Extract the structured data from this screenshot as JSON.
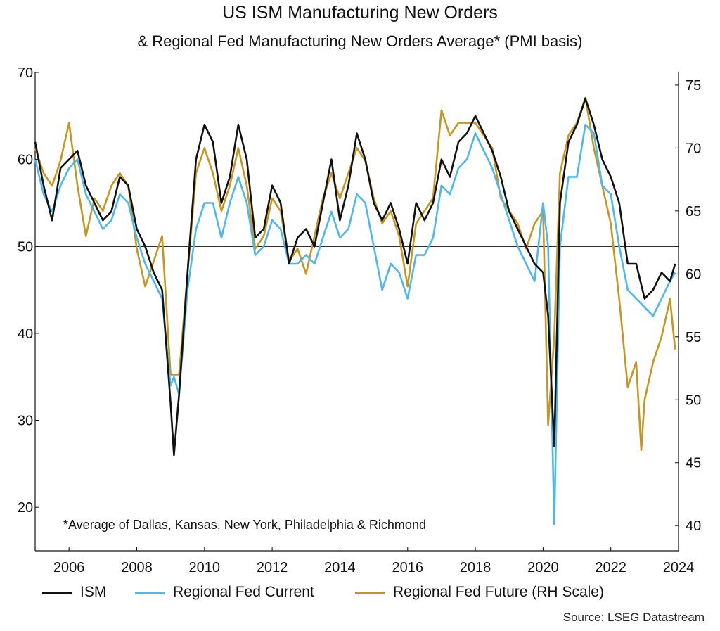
{
  "chart_data": {
    "type": "line",
    "title": "US ISM Manufacturing New Orders",
    "subtitle": "& Regional Fed Manufacturing New Orders Average* (PMI basis)",
    "note": "*Average of Dallas, Kansas, New York, Philadelphia & Richmond",
    "source": "Source: LSEG Datastream",
    "x_ticks": [
      "2006",
      "2008",
      "2010",
      "2012",
      "2014",
      "2016",
      "2018",
      "2020",
      "2022",
      "2024"
    ],
    "x_range": [
      2005.0,
      2024.0
    ],
    "y_left": {
      "range": [
        15,
        70
      ],
      "ticks": [
        "20",
        "30",
        "40",
        "50",
        "60",
        "70"
      ]
    },
    "y_right": {
      "range": [
        38,
        76
      ],
      "ticks": [
        "40",
        "45",
        "50",
        "55",
        "60",
        "65",
        "70",
        "75"
      ]
    },
    "reference_line": 50,
    "legend_placement": "bottom",
    "series": [
      {
        "name": "ISM",
        "axis": "left",
        "color": "#111111",
        "points": [
          [
            2005.0,
            62
          ],
          [
            2005.25,
            57
          ],
          [
            2005.5,
            53
          ],
          [
            2005.75,
            59
          ],
          [
            2006.0,
            60
          ],
          [
            2006.25,
            61
          ],
          [
            2006.5,
            57
          ],
          [
            2006.75,
            55
          ],
          [
            2007.0,
            53
          ],
          [
            2007.25,
            54
          ],
          [
            2007.5,
            58
          ],
          [
            2007.75,
            57
          ],
          [
            2008.0,
            52
          ],
          [
            2008.25,
            50
          ],
          [
            2008.5,
            47
          ],
          [
            2008.75,
            45
          ],
          [
            2009.0,
            32
          ],
          [
            2009.1,
            26
          ],
          [
            2009.25,
            33
          ],
          [
            2009.5,
            47
          ],
          [
            2009.75,
            60
          ],
          [
            2010.0,
            64
          ],
          [
            2010.25,
            62
          ],
          [
            2010.5,
            55
          ],
          [
            2010.75,
            58
          ],
          [
            2011.0,
            64
          ],
          [
            2011.25,
            60
          ],
          [
            2011.5,
            51
          ],
          [
            2011.75,
            52
          ],
          [
            2012.0,
            57
          ],
          [
            2012.25,
            55
          ],
          [
            2012.5,
            48
          ],
          [
            2012.75,
            51
          ],
          [
            2013.0,
            52
          ],
          [
            2013.25,
            50
          ],
          [
            2013.5,
            55
          ],
          [
            2013.75,
            60
          ],
          [
            2014.0,
            53
          ],
          [
            2014.25,
            57
          ],
          [
            2014.5,
            63
          ],
          [
            2014.75,
            60
          ],
          [
            2015.0,
            55
          ],
          [
            2015.25,
            53
          ],
          [
            2015.5,
            55
          ],
          [
            2015.75,
            52
          ],
          [
            2016.0,
            48
          ],
          [
            2016.25,
            55
          ],
          [
            2016.5,
            53
          ],
          [
            2016.75,
            55
          ],
          [
            2017.0,
            60
          ],
          [
            2017.25,
            58
          ],
          [
            2017.5,
            62
          ],
          [
            2017.75,
            63
          ],
          [
            2018.0,
            65
          ],
          [
            2018.25,
            63
          ],
          [
            2018.5,
            61
          ],
          [
            2018.75,
            58
          ],
          [
            2019.0,
            54
          ],
          [
            2019.25,
            52
          ],
          [
            2019.5,
            50
          ],
          [
            2019.75,
            48
          ],
          [
            2020.0,
            47
          ],
          [
            2020.15,
            42
          ],
          [
            2020.33,
            27
          ],
          [
            2020.5,
            55
          ],
          [
            2020.75,
            62
          ],
          [
            2021.0,
            64
          ],
          [
            2021.25,
            67
          ],
          [
            2021.5,
            64
          ],
          [
            2021.75,
            60
          ],
          [
            2022.0,
            58
          ],
          [
            2022.25,
            55
          ],
          [
            2022.5,
            48
          ],
          [
            2022.75,
            48
          ],
          [
            2023.0,
            44
          ],
          [
            2023.25,
            45
          ],
          [
            2023.5,
            47
          ],
          [
            2023.75,
            46
          ],
          [
            2023.9,
            48
          ]
        ]
      },
      {
        "name": "Regional Fed Current",
        "axis": "left",
        "color": "#4db8f0",
        "points": [
          [
            2005.0,
            60
          ],
          [
            2005.25,
            56
          ],
          [
            2005.5,
            54
          ],
          [
            2005.75,
            57
          ],
          [
            2006.0,
            59
          ],
          [
            2006.25,
            60
          ],
          [
            2006.5,
            56
          ],
          [
            2006.75,
            54
          ],
          [
            2007.0,
            52
          ],
          [
            2007.25,
            53
          ],
          [
            2007.5,
            56
          ],
          [
            2007.75,
            55
          ],
          [
            2008.0,
            51
          ],
          [
            2008.25,
            48
          ],
          [
            2008.5,
            46
          ],
          [
            2008.75,
            44
          ],
          [
            2009.0,
            34
          ],
          [
            2009.1,
            35
          ],
          [
            2009.25,
            33
          ],
          [
            2009.5,
            45
          ],
          [
            2009.75,
            52
          ],
          [
            2010.0,
            55
          ],
          [
            2010.25,
            55
          ],
          [
            2010.5,
            51
          ],
          [
            2010.75,
            55
          ],
          [
            2011.0,
            58
          ],
          [
            2011.25,
            55
          ],
          [
            2011.5,
            49
          ],
          [
            2011.75,
            50
          ],
          [
            2012.0,
            53
          ],
          [
            2012.25,
            52
          ],
          [
            2012.5,
            48
          ],
          [
            2012.75,
            48
          ],
          [
            2013.0,
            49
          ],
          [
            2013.25,
            48
          ],
          [
            2013.5,
            51
          ],
          [
            2013.75,
            54
          ],
          [
            2014.0,
            51
          ],
          [
            2014.25,
            52
          ],
          [
            2014.5,
            56
          ],
          [
            2014.75,
            55
          ],
          [
            2015.0,
            50
          ],
          [
            2015.25,
            45
          ],
          [
            2015.5,
            48
          ],
          [
            2015.75,
            47
          ],
          [
            2016.0,
            44
          ],
          [
            2016.25,
            49
          ],
          [
            2016.5,
            49
          ],
          [
            2016.75,
            51
          ],
          [
            2017.0,
            57
          ],
          [
            2017.25,
            56
          ],
          [
            2017.5,
            59
          ],
          [
            2017.75,
            60
          ],
          [
            2018.0,
            63
          ],
          [
            2018.25,
            61
          ],
          [
            2018.5,
            59
          ],
          [
            2018.75,
            56
          ],
          [
            2019.0,
            53
          ],
          [
            2019.25,
            50
          ],
          [
            2019.5,
            48
          ],
          [
            2019.75,
            46
          ],
          [
            2020.0,
            55
          ],
          [
            2020.15,
            50
          ],
          [
            2020.33,
            18
          ],
          [
            2020.5,
            50
          ],
          [
            2020.75,
            58
          ],
          [
            2021.0,
            58
          ],
          [
            2021.25,
            64
          ],
          [
            2021.5,
            63
          ],
          [
            2021.75,
            57
          ],
          [
            2022.0,
            56
          ],
          [
            2022.25,
            50
          ],
          [
            2022.5,
            45
          ],
          [
            2022.75,
            44
          ],
          [
            2023.0,
            43
          ],
          [
            2023.25,
            42
          ],
          [
            2023.5,
            44
          ],
          [
            2023.75,
            46
          ],
          [
            2023.9,
            47
          ]
        ]
      },
      {
        "name": "Regional Fed Future (RH Scale)",
        "axis": "right",
        "color": "#c8961e",
        "points": [
          [
            2005.0,
            70
          ],
          [
            2005.25,
            68
          ],
          [
            2005.5,
            67
          ],
          [
            2005.75,
            69
          ],
          [
            2006.0,
            72
          ],
          [
            2006.25,
            67
          ],
          [
            2006.5,
            63
          ],
          [
            2006.75,
            66
          ],
          [
            2007.0,
            65
          ],
          [
            2007.25,
            67
          ],
          [
            2007.5,
            68
          ],
          [
            2007.75,
            67
          ],
          [
            2008.0,
            62
          ],
          [
            2008.25,
            59
          ],
          [
            2008.5,
            61
          ],
          [
            2008.75,
            63
          ],
          [
            2009.0,
            52
          ],
          [
            2009.1,
            52
          ],
          [
            2009.25,
            52
          ],
          [
            2009.5,
            60
          ],
          [
            2009.75,
            68
          ],
          [
            2010.0,
            70
          ],
          [
            2010.25,
            68
          ],
          [
            2010.5,
            65
          ],
          [
            2010.75,
            67
          ],
          [
            2011.0,
            70
          ],
          [
            2011.25,
            67
          ],
          [
            2011.5,
            62
          ],
          [
            2011.75,
            63
          ],
          [
            2012.0,
            66
          ],
          [
            2012.25,
            65
          ],
          [
            2012.5,
            61
          ],
          [
            2012.75,
            62
          ],
          [
            2013.0,
            60
          ],
          [
            2013.25,
            63
          ],
          [
            2013.5,
            66
          ],
          [
            2013.75,
            68
          ],
          [
            2014.0,
            66
          ],
          [
            2014.25,
            68
          ],
          [
            2014.5,
            70
          ],
          [
            2014.75,
            69
          ],
          [
            2015.0,
            66
          ],
          [
            2015.25,
            64
          ],
          [
            2015.5,
            65
          ],
          [
            2015.75,
            63
          ],
          [
            2016.0,
            59
          ],
          [
            2016.25,
            64
          ],
          [
            2016.5,
            65
          ],
          [
            2016.75,
            66
          ],
          [
            2017.0,
            73
          ],
          [
            2017.25,
            71
          ],
          [
            2017.5,
            72
          ],
          [
            2017.75,
            72
          ],
          [
            2018.0,
            72
          ],
          [
            2018.25,
            71
          ],
          [
            2018.5,
            70
          ],
          [
            2018.75,
            66
          ],
          [
            2019.0,
            65
          ],
          [
            2019.25,
            64
          ],
          [
            2019.5,
            62
          ],
          [
            2019.75,
            64
          ],
          [
            2020.0,
            65
          ],
          [
            2020.15,
            48
          ],
          [
            2020.33,
            55
          ],
          [
            2020.5,
            68
          ],
          [
            2020.75,
            71
          ],
          [
            2021.0,
            72
          ],
          [
            2021.25,
            74
          ],
          [
            2021.5,
            70
          ],
          [
            2021.75,
            67
          ],
          [
            2022.0,
            64
          ],
          [
            2022.25,
            58
          ],
          [
            2022.5,
            51
          ],
          [
            2022.75,
            53
          ],
          [
            2022.9,
            46
          ],
          [
            2023.0,
            50
          ],
          [
            2023.25,
            53
          ],
          [
            2023.5,
            55
          ],
          [
            2023.75,
            58
          ],
          [
            2023.9,
            54
          ]
        ]
      }
    ]
  }
}
